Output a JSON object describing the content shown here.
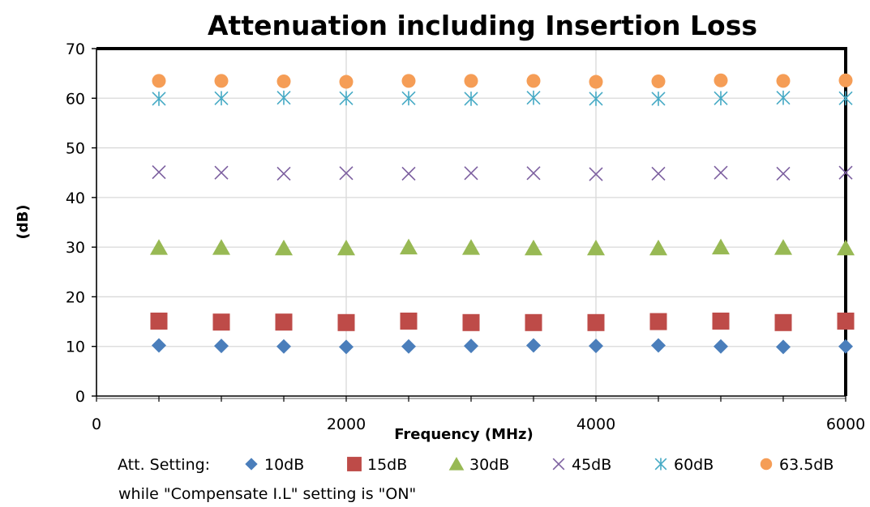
{
  "chart_data": {
    "type": "scatter",
    "title": "Attenuation including Insertion Loss",
    "xlabel": "Frequency (MHz)",
    "ylabel": "(dB)",
    "xlim": [
      0,
      6000
    ],
    "ylim": [
      0,
      70
    ],
    "x_ticks": [
      0,
      2000,
      4000,
      6000
    ],
    "x_minor_step": 500,
    "y_ticks": [
      0,
      10,
      20,
      30,
      40,
      50,
      60,
      70
    ],
    "grid": true,
    "legend_position": "bottom",
    "legend_title": "Att. Setting:",
    "note": "while \"Compensate I.L\" setting is \"ON\"",
    "x": [
      500,
      1000,
      1500,
      2000,
      2500,
      3000,
      3500,
      4000,
      4500,
      5000,
      5500,
      6000
    ],
    "series": [
      {
        "name": "10dB",
        "marker": "diamond",
        "color": "#4a7ebb",
        "values": [
          10.2,
          10.1,
          10.0,
          9.9,
          10.0,
          10.1,
          10.2,
          10.1,
          10.2,
          10.0,
          9.9,
          10.0
        ]
      },
      {
        "name": "15dB",
        "marker": "square",
        "color": "#be4b48",
        "values": [
          15.1,
          14.9,
          14.9,
          14.8,
          15.1,
          14.8,
          14.8,
          14.8,
          15.0,
          15.1,
          14.8,
          15.1
        ]
      },
      {
        "name": "30dB",
        "marker": "triangle",
        "color": "#98b954",
        "values": [
          29.9,
          29.9,
          29.8,
          29.8,
          30.0,
          29.9,
          29.8,
          29.8,
          29.8,
          30.0,
          29.9,
          29.8
        ]
      },
      {
        "name": "45dB",
        "marker": "x",
        "color": "#7d60a0",
        "values": [
          45.1,
          45.0,
          44.8,
          44.9,
          44.8,
          44.9,
          44.9,
          44.7,
          44.8,
          45.0,
          44.8,
          45.0
        ]
      },
      {
        "name": "60dB",
        "marker": "star",
        "color": "#46aac5",
        "values": [
          59.9,
          60.0,
          60.1,
          60.0,
          60.0,
          59.9,
          60.1,
          59.9,
          59.9,
          60.0,
          60.1,
          60.0
        ]
      },
      {
        "name": "63.5dB",
        "marker": "circle",
        "color": "#f59d56",
        "values": [
          63.5,
          63.5,
          63.4,
          63.3,
          63.5,
          63.5,
          63.5,
          63.3,
          63.4,
          63.6,
          63.5,
          63.6
        ]
      }
    ]
  }
}
